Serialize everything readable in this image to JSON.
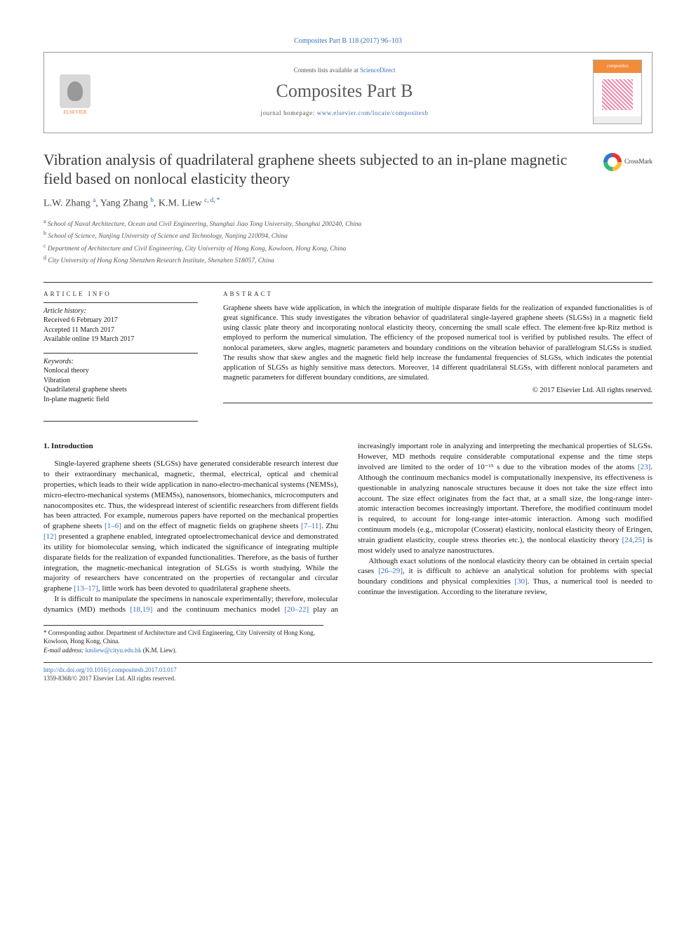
{
  "citation": "Composites Part B 118 (2017) 96–103",
  "header": {
    "contents_prefix": "Contents lists available at ",
    "contents_link": "ScienceDirect",
    "journal": "Composites Part B",
    "homepage_prefix": "journal homepage: ",
    "homepage_link": "www.elsevier.com/locate/compositesb",
    "publisher": "ELSEVIER",
    "cover_label": "composites"
  },
  "title": "Vibration analysis of quadrilateral graphene sheets subjected to an in-plane magnetic field based on nonlocal elasticity theory",
  "crossmark": "CrossMark",
  "authors_html": "L.W. Zhang <sup>a</sup>, Yang Zhang <sup>b</sup>, K.M. Liew <sup>c, d, *</sup>",
  "affiliations": {
    "a": "School of Naval Architecture, Ocean and Civil Engineering, Shanghai Jiao Tong University, Shanghai 200240, China",
    "b": "School of Science, Nanjing University of Science and Technology, Nanjing 210094, China",
    "c": "Department of Architecture and Civil Engineering, City University of Hong Kong, Kowloon, Hong Kong, China",
    "d": "City University of Hong Kong Shenzhen Research Institute, Shenzhen 518057, China"
  },
  "article_info": {
    "heading": "ARTICLE INFO",
    "history_label": "Article history:",
    "history": [
      "Received 6 February 2017",
      "Accepted 11 March 2017",
      "Available online 19 March 2017"
    ],
    "keywords_label": "Keywords:",
    "keywords": [
      "Nonlocal theory",
      "Vibration",
      "Quadrilateral graphene sheets",
      "In-plane magnetic field"
    ]
  },
  "abstract": {
    "heading": "ABSTRACT",
    "text": "Graphene sheets have wide application, in which the integration of multiple disparate fields for the realization of expanded functionalities is of great significance. This study investigates the vibration behavior of quadrilateral single-layered graphene sheets (SLGSs) in a magnetic field using classic plate theory and incorporating nonlocal elasticity theory, concerning the small scale effect. The element-free kp-Ritz method is employed to perform the numerical simulation. The efficiency of the proposed numerical tool is verified by published results. The effect of nonlocal parameters, skew angles, magnetic parameters and boundary conditions on the vibration behavior of parallelogram SLGSs is studied. The results show that skew angles and the magnetic field help increase the fundamental frequencies of SLGSs, which indicates the potential application of SLGSs as highly sensitive mass detectors. Moreover, 14 different quadrilateral SLGSs, with different nonlocal parameters and magnetic parameters for different boundary conditions, are simulated.",
    "copyright": "© 2017 Elsevier Ltd. All rights reserved."
  },
  "section1": {
    "heading": "1. Introduction",
    "p1a": "Single-layered graphene sheets (SLGSs) have generated considerable research interest due to their extraordinary mechanical, magnetic, thermal, electrical, optical and chemical properties, which leads to their wide application in nano-electro-mechanical systems (NEMSs), micro-electro-mechanical systems (MEMSs), nanosensors, biomechanics, microcomputers and nanocomposites etc. Thus, the widespread interest of scientific researchers from different fields has been attracted. For example, numerous papers have reported on the mechanical properties of graphene sheets ",
    "ref1": "[1–6]",
    "p1b": " and on the effect of magnetic fields on graphene sheets ",
    "ref2": "[7–11]",
    "p1c": ". Zhu ",
    "ref3": "[12]",
    "p1d": " presented a graphene enabled, integrated optoelectromechanical device and demonstrated its utility for biomolecular sensing, which indicated the significance of integrating multiple disparate fields for the realization of expanded functionalities. Therefore, as the basis of further integration, the magnetic-mechanical integration of SLGSs is worth studying. While the majority of researchers have concentrated on the properties of rectangular and circular graphene ",
    "ref4": "[13–17]",
    "p1e": ", little work has been devoted to quadrilateral graphene sheets.",
    "p2a": "It is difficult to manipulate the specimens in nanoscale experimentally; therefore, molecular dynamics (MD) methods ",
    "ref5": "[18,19]",
    "p2b": " and the continuum mechanics model ",
    "ref6": "[20–22]",
    "p2c": " play an increasingly important role in analyzing and interpreting the mechanical properties of SLGSs. However, MD methods require considerable computational expense and the time steps involved are limited to the order of 10⁻¹⁵ s due to the vibration modes of the atoms ",
    "ref7": "[23]",
    "p2d": ". Although the continuum mechanics model is computationally inexpensive, its effectiveness is questionable in analyzing nanoscale structures because it does not take the size effect into account. The size effect originates from the fact that, at a small size, the long-range inter-atomic interaction becomes increasingly important. Therefore, the modified continuum model is required, to account for long-range inter-atomic interaction. Among such modified continuum models (e.g., micropolar (Cosserat) elasticity, nonlocal elasticity theory of Eringen, strain gradient elasticity, couple stress theories etc.), the nonlocal elasticity theory ",
    "ref8": "[24,25]",
    "p2e": " is most widely used to analyze nanostructures.",
    "p3a": "Although exact solutions of the nonlocal elasticity theory can be obtained in certain special cases ",
    "ref9": "[26–29]",
    "p3b": ", it is difficult to achieve an analytical solution for problems with special boundary conditions and physical complexities ",
    "ref10": "[30]",
    "p3c": ". Thus, a numerical tool is needed to continue the investigation. According to the literature review,"
  },
  "footnote": {
    "corresponding": "* Corresponding author. Department of Architecture and Civil Engineering, City University of Hong Kong, Kowloon, Hong Kong, China.",
    "email_label": "E-mail address: ",
    "email": "kmliew@cityu.edu.hk",
    "email_suffix": " (K.M. Liew)."
  },
  "bottom": {
    "doi": "http://dx.doi.org/10.1016/j.compositesb.2017.03.017",
    "issn": "1359-8368/© 2017 Elsevier Ltd. All rights reserved."
  },
  "colors": {
    "link": "#3a6fb7",
    "text": "#1a1a1a",
    "orange": "#e77b2f"
  }
}
